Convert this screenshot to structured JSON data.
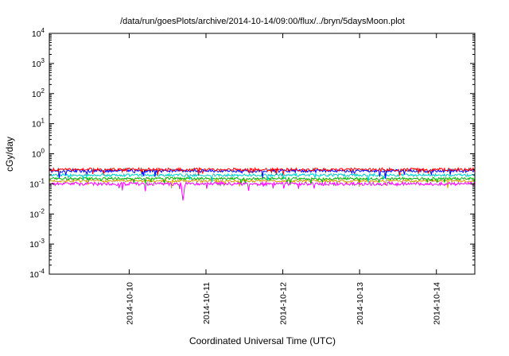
{
  "chart_data": {
    "type": "line",
    "title": "/data/run/goesPlots/archive/2014-10-14/09:00/flux/../bryn/5daysMoon.plot",
    "xlabel": "Coordinated Universal Time (UTC)",
    "ylabel": "cGy/day",
    "y_scale": "log10",
    "ylim": [
      0.0001,
      10000.0
    ],
    "y_exponent_ticks": [
      4,
      3,
      2,
      1,
      0,
      -1,
      -2,
      -3,
      -4
    ],
    "x_reference_date": "2014-10-10",
    "x_domain_days": [
      -1.04,
      4.5
    ],
    "x_ticks": [
      {
        "label": "2014-10-10",
        "day": 0
      },
      {
        "label": "2014-10-11",
        "day": 1
      },
      {
        "label": "2014-10-12",
        "day": 2
      },
      {
        "label": "2014-10-13",
        "day": 3
      },
      {
        "label": "2014-10-14",
        "day": 4
      }
    ],
    "grid": false,
    "legend": "none",
    "axis_color": "#000000",
    "background_color": "#ffffff",
    "noise": {
      "points": 520,
      "seed": 7,
      "dip_probability": 0.04,
      "dip_depth_decades": 0.22,
      "spike_halfwidth_days": 0.025
    },
    "series": [
      {
        "name": "line-dark-yellow",
        "color": "#c8a000",
        "base_value": 0.125,
        "log_noise": 0.04
      },
      {
        "name": "line-green",
        "color": "#00b000",
        "base_value": 0.15,
        "log_noise": 0.04
      },
      {
        "name": "line-cyan",
        "color": "#00cccc",
        "base_value": 0.195,
        "log_noise": 0.045
      },
      {
        "name": "line-magenta",
        "color": "#ff00ff",
        "base_value": 0.1,
        "log_noise": 0.055,
        "spikes": [
          {
            "day": 0.7,
            "value": 0.028
          }
        ]
      },
      {
        "name": "line-blue",
        "color": "#0000ff",
        "base_value": 0.27,
        "log_noise": 0.05
      },
      {
        "name": "line-red",
        "color": "#ff0000",
        "base_value": 0.3,
        "log_noise": 0.05
      }
    ]
  }
}
